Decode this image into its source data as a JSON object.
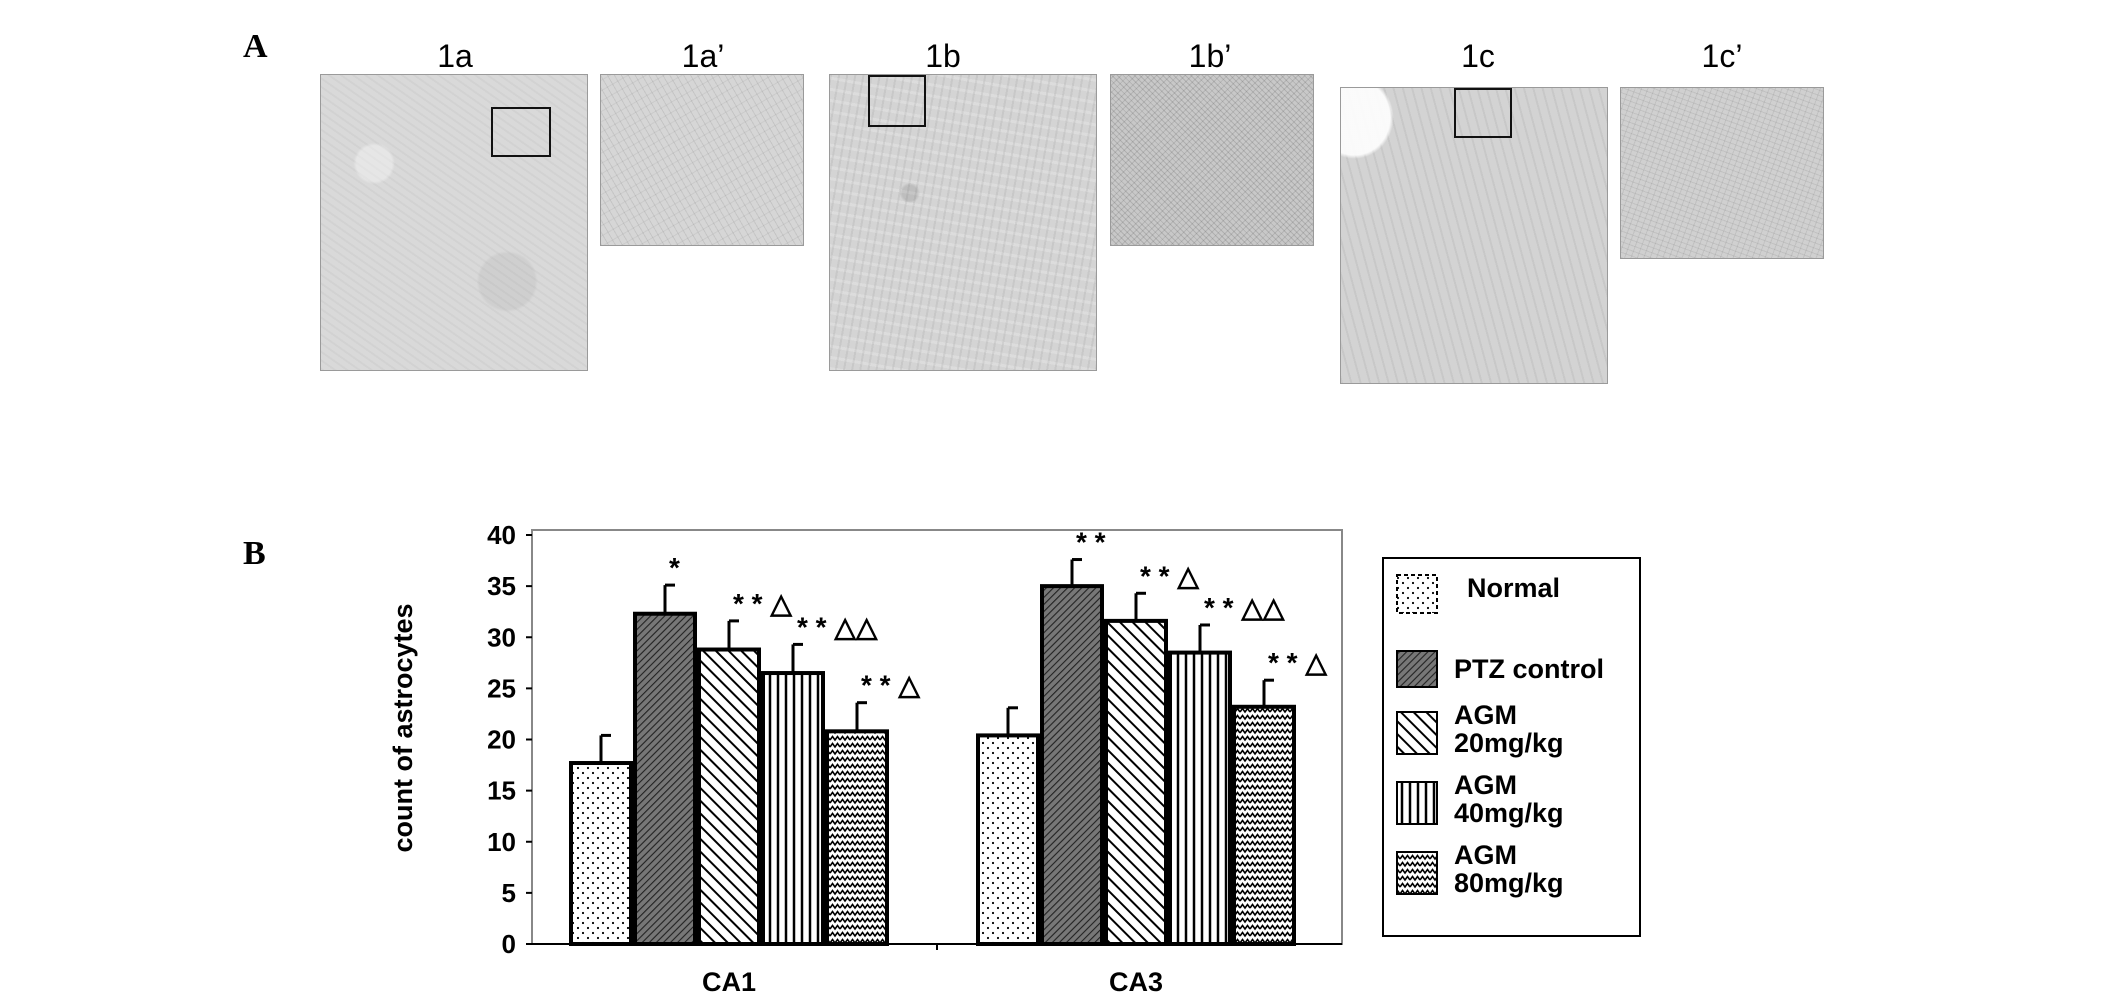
{
  "panel_a": {
    "letter": "A",
    "images": [
      {
        "label": "1a"
      },
      {
        "label": "1a’"
      },
      {
        "label": "1b"
      },
      {
        "label": "1b’"
      },
      {
        "label": "1c"
      },
      {
        "label": "1c’"
      }
    ]
  },
  "panel_b": {
    "letter": "B"
  },
  "chart_data": {
    "type": "bar",
    "title": "",
    "xlabel": "",
    "ylabel": "count of astrocytes",
    "categories": [
      "CA1",
      "CA3"
    ],
    "ylim": [
      0,
      40
    ],
    "yticks": [
      0,
      5,
      10,
      15,
      20,
      25,
      30,
      35,
      40
    ],
    "grid": false,
    "legend_position": "right",
    "series": [
      {
        "name": "Normal",
        "pattern": "dots",
        "values": [
          17.7,
          20.4
        ],
        "errors": [
          2.7,
          2.7
        ],
        "annotations": [
          "",
          ""
        ]
      },
      {
        "name": "PTZ control",
        "pattern": "dense-diagonal",
        "values": [
          32.3,
          35.0
        ],
        "errors": [
          2.8,
          2.6
        ],
        "annotations": [
          "*",
          "* *"
        ]
      },
      {
        "name": "AGM 20mg/kg",
        "pattern": "diagonal",
        "values": [
          28.8,
          31.6
        ],
        "errors": [
          2.8,
          2.7
        ],
        "annotations": [
          "* * △",
          "* * △"
        ]
      },
      {
        "name": "AGM 40mg/kg",
        "pattern": "vertical",
        "values": [
          26.5,
          28.5
        ],
        "errors": [
          2.8,
          2.7
        ],
        "annotations": [
          "* * △△",
          "* * △△"
        ]
      },
      {
        "name": "AGM 80mg/kg",
        "pattern": "zigzag",
        "values": [
          20.8,
          23.2
        ],
        "errors": [
          2.8,
          2.6
        ],
        "annotations": [
          "* * △",
          "* * △"
        ]
      }
    ],
    "legend": {
      "entries": [
        {
          "lines": [
            "Normal"
          ]
        },
        {
          "lines": [
            "PTZ control"
          ]
        },
        {
          "lines": [
            "AGM",
            "20mg/kg"
          ]
        },
        {
          "lines": [
            "AGM",
            "40mg/kg"
          ]
        },
        {
          "lines": [
            "AGM",
            "80mg/kg"
          ]
        }
      ]
    },
    "colors": {
      "bar_outline": "#000000",
      "ptz_fill": "#555555",
      "frame": "#888888"
    }
  }
}
